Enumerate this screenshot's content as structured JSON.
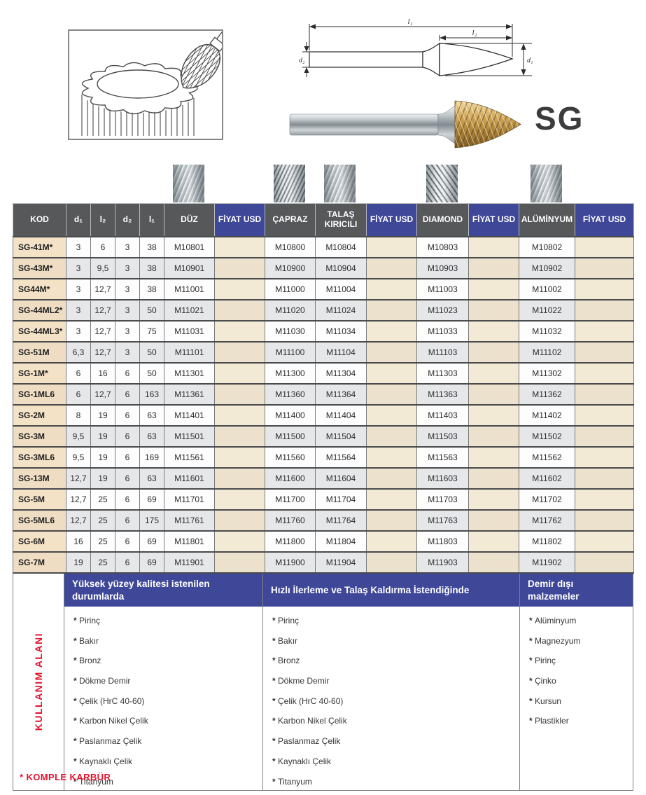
{
  "page": {
    "series_label": "SG",
    "footnote": "* KOMPLE KARBÜR"
  },
  "images": {
    "illustration": "burr-deburring-gear-line-art",
    "diagram": "burr-dimension-drawing",
    "photo": "sg-pointed-tree-carbide-burr",
    "column_photos": [
      "duz-flute-texture",
      "capraz-flute-texture",
      "talas-kiricili-flute-texture",
      "diamond-flute-texture",
      "aluminyum-flute-texture"
    ]
  },
  "diagram": {
    "l1": "l₁",
    "l2": "l₂",
    "d1": "d₁",
    "d2": "d₂"
  },
  "table": {
    "headers": [
      "KOD",
      "d₁",
      "l₂",
      "d₂",
      "l₁",
      "DÜZ",
      "FİYAT USD",
      "ÇAPRAZ",
      "TALAŞ KIRICILI",
      "FİYAT USD",
      "DIAMOND",
      "FİYAT USD",
      "ALÜMİNYUM",
      "FİYAT USD"
    ],
    "rows": [
      [
        "SG-41M*",
        "3",
        "6",
        "3",
        "38",
        "M10801",
        "",
        "M10800",
        "M10804",
        "",
        "M10803",
        "",
        "M10802",
        ""
      ],
      [
        "SG-43M*",
        "3",
        "9,5",
        "3",
        "38",
        "M10901",
        "",
        "M10900",
        "M10904",
        "",
        "M10903",
        "",
        "M10902",
        ""
      ],
      [
        "SG44M*",
        "3",
        "12,7",
        "3",
        "38",
        "M11001",
        "",
        "M11000",
        "M11004",
        "",
        "M11003",
        "",
        "M11002",
        ""
      ],
      [
        "SG-44ML2*",
        "3",
        "12,7",
        "3",
        "50",
        "M11021",
        "",
        "M11020",
        "M11024",
        "",
        "M11023",
        "",
        "M11022",
        ""
      ],
      [
        "SG-44ML3*",
        "3",
        "12,7",
        "3",
        "75",
        "M11031",
        "",
        "M11030",
        "M11034",
        "",
        "M11033",
        "",
        "M11032",
        ""
      ],
      [
        "SG-51M",
        "6,3",
        "12,7",
        "3",
        "50",
        "M11101",
        "",
        "M11100",
        "M11104",
        "",
        "M11103",
        "",
        "M11102",
        ""
      ],
      [
        "SG-1M*",
        "6",
        "16",
        "6",
        "50",
        "M11301",
        "",
        "M11300",
        "M11304",
        "",
        "M11303",
        "",
        "M11302",
        ""
      ],
      [
        "SG-1ML6",
        "6",
        "12,7",
        "6",
        "163",
        "M11361",
        "",
        "M11360",
        "M11364",
        "",
        "M11363",
        "",
        "M11362",
        ""
      ],
      [
        "SG-2M",
        "8",
        "19",
        "6",
        "63",
        "M11401",
        "",
        "M11400",
        "M11404",
        "",
        "M11403",
        "",
        "M11402",
        ""
      ],
      [
        "SG-3M",
        "9,5",
        "19",
        "6",
        "63",
        "M11501",
        "",
        "M11500",
        "M11504",
        "",
        "M11503",
        "",
        "M11502",
        ""
      ],
      [
        "SG-3ML6",
        "9,5",
        "19",
        "6",
        "169",
        "M11561",
        "",
        "M11560",
        "M11564",
        "",
        "M11563",
        "",
        "M11562",
        ""
      ],
      [
        "SG-13M",
        "12,7",
        "19",
        "6",
        "63",
        "M11601",
        "",
        "M11600",
        "M11604",
        "",
        "M11603",
        "",
        "M11602",
        ""
      ],
      [
        "SG-5M",
        "12,7",
        "25",
        "6",
        "69",
        "M11701",
        "",
        "M11700",
        "M11704",
        "",
        "M11703",
        "",
        "M11702",
        ""
      ],
      [
        "SG-5ML6",
        "12,7",
        "25",
        "6",
        "175",
        "M11761",
        "",
        "M11760",
        "M11764",
        "",
        "M11763",
        "",
        "M11762",
        ""
      ],
      [
        "SG-6M",
        "16",
        "25",
        "6",
        "69",
        "M11801",
        "",
        "M11800",
        "M11804",
        "",
        "M11803",
        "",
        "M11802",
        ""
      ],
      [
        "SG-7M",
        "19",
        "25",
        "6",
        "69",
        "M11901",
        "",
        "M11900",
        "M11904",
        "",
        "M11903",
        "",
        "M11902",
        ""
      ]
    ]
  },
  "usage": {
    "side_label": "KULLANIM ALANI",
    "columns": [
      {
        "header": "Yüksek yüzey kalitesi istenilen durumlarda",
        "items": [
          "Pirinç",
          "Bakır",
          "Bronz",
          "Dökme Demir",
          "Çelik (HrC 40-60)",
          "Karbon Nikel Çelik",
          "Paslanmaz Çelik",
          "Kaynaklı Çelik",
          "Titanyum"
        ]
      },
      {
        "header": "Hızlı İlerleme ve Talaş Kaldırma İstendiğinde",
        "items": [
          "Pirinç",
          "Bakır",
          "Bronz",
          "Dökme Demir",
          "Çelik (HrC 40-60)",
          "Karbon Nikel Çelik",
          "Paslanmaz Çelik",
          "Kaynaklı Çelik",
          "Titanyum"
        ]
      },
      {
        "header": "Demir dışı malzemeler",
        "items": [
          "Alüminyum",
          "Magnezyum",
          "Pirinç",
          "Çinko",
          "Kursun",
          "Plastikler"
        ]
      }
    ]
  },
  "colors": {
    "accent_blue": "#3e4798",
    "header_gray": "#57585a",
    "kod_beige": "#f3e2c6",
    "price_cream": "#f3ead6",
    "alt_row_gray": "#e6e7e9",
    "accent_red": "#e3132f"
  }
}
